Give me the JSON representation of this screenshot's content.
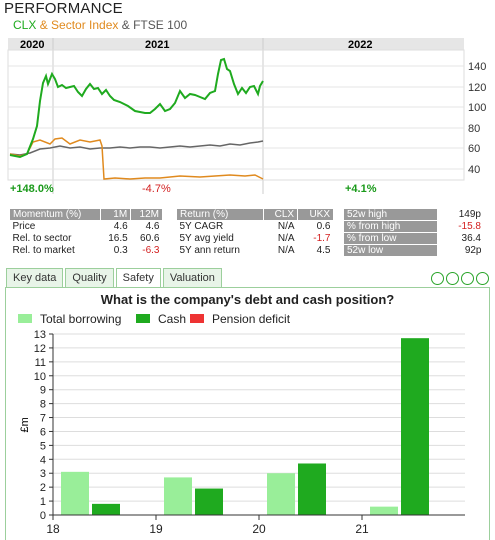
{
  "header": {
    "title": "PERFORMANCE",
    "legend": {
      "clx": "CLX",
      "sector": "& Sector Index",
      "ftse": "& FTSE 100"
    }
  },
  "perf_chart": {
    "years": [
      "2020",
      "2021",
      "2022"
    ],
    "y_ticks": [
      "140",
      "120",
      "100",
      "80",
      "60",
      "40"
    ],
    "returns": [
      "+148.0%",
      "-4.7%",
      "+4.1%"
    ],
    "colors": {
      "clx": "#1faa1f",
      "sector": "#e08a1e",
      "ftse": "#666666"
    }
  },
  "momentum": {
    "headers": [
      "Momentum (%)",
      "1M",
      "12M"
    ],
    "rows": [
      {
        "label": "Price",
        "m1": "4.6",
        "m12": "4.6"
      },
      {
        "label": "Rel. to sector",
        "m1": "16.5",
        "m12": "60.6"
      },
      {
        "label": "Rel. to market",
        "m1": "0.3",
        "m12": "-6.3"
      }
    ]
  },
  "returns_table": {
    "headers": [
      "Return (%)",
      "CLX",
      "UKX"
    ],
    "rows": [
      {
        "label": "5Y CAGR",
        "clx": "N/A",
        "ukx": "0.6"
      },
      {
        "label": "5Y avg yield",
        "clx": "N/A",
        "ukx": "-1.7"
      },
      {
        "label": "5Y ann return",
        "clx": "N/A",
        "ukx": "4.5"
      }
    ]
  },
  "week52": {
    "rows": [
      {
        "label": "52w high",
        "value": "149p"
      },
      {
        "label": "% from high",
        "value": "-15.8"
      },
      {
        "label": "% from low",
        "value": "36.4"
      },
      {
        "label": "52w low",
        "value": "92p"
      }
    ]
  },
  "tabs": [
    "Key data",
    "Quality",
    "Safety",
    "Valuation"
  ],
  "active_tab": "Safety",
  "question": "What is the company's debt and cash position?",
  "chart_data": {
    "type": "bar",
    "categories": [
      "18",
      "19",
      "20",
      "21"
    ],
    "series": [
      {
        "name": "Total borrowing",
        "color": "#99ee99",
        "values": [
          3.1,
          2.7,
          3.0,
          0.6
        ]
      },
      {
        "name": "Cash",
        "color": "#1faa1f",
        "values": [
          0.8,
          1.9,
          3.7,
          12.7
        ]
      },
      {
        "name": "Pension deficit",
        "color": "#ee3333",
        "values": [
          0,
          0,
          0,
          0
        ]
      }
    ],
    "ylabel": "£m",
    "ylim": [
      0,
      13
    ],
    "y_ticks": [
      0,
      1,
      2,
      3,
      4,
      5,
      6,
      7,
      8,
      9,
      10,
      11,
      12,
      13
    ],
    "grid": true,
    "legend": "top-left"
  }
}
